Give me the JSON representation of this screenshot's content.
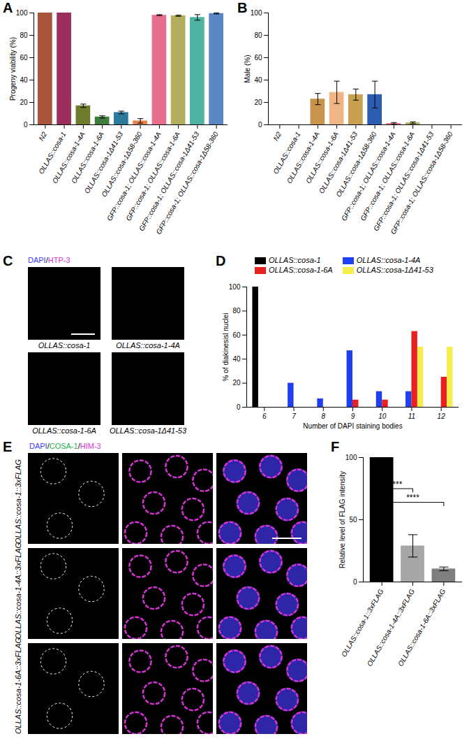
{
  "chart_data": [
    {
      "panel": "A",
      "type": "bar",
      "categories": [
        "N2",
        "OLLAS::cosa-1",
        "OLLAS::cosa-1-4A",
        "OLLAS::cosa-1-6A",
        "OLLAS::cosa-1Δ41-53",
        "OLLAS::cosa-1Δ58-360",
        "GFP::cosa-1; OLLAS::cosa-1-4A",
        "GFP::cosa-1; OLLAS::cosa-1-6A",
        "GFP::cosa-1; OLLAS::cosa-1Δ41-53",
        "GFP::cosa-1; OLLAS::cosa-1Δ58-360"
      ],
      "values": [
        100,
        100,
        17,
        7,
        11,
        3.5,
        98,
        97.5,
        96,
        99.5
      ],
      "errors": [
        0,
        0,
        1.5,
        1,
        1.2,
        2,
        0.5,
        0.5,
        2.5,
        0.5
      ],
      "colors": [
        "#a9533b",
        "#9a2f5c",
        "#6e7b28",
        "#3f7d3a",
        "#2b7a9e",
        "#e8834a",
        "#e66f8d",
        "#b3ad5e",
        "#4fb3a3",
        "#5a86c6"
      ],
      "ylabel": "Progeny viability (%)",
      "ylim": [
        0,
        100
      ],
      "yticks": [
        0,
        20,
        40,
        60,
        80,
        100
      ]
    },
    {
      "panel": "B",
      "type": "bar",
      "categories": [
        "N2",
        "OLLAS::cosa-1",
        "OLLAS::cosa-1-4A",
        "OLLAS::cosa-1-6A",
        "OLLAS::cosa-1Δ41-53",
        "OLLAS::cosa-1Δ58-360",
        "GFP::cosa-1; OLLAS::cosa-1-4A",
        "GFP::cosa-1; OLLAS::cosa-1-6A",
        "GFP::cosa-1; OLLAS::cosa-1Δ41-53",
        "GFP::cosa-1; OLLAS::cosa-1Δ58-360"
      ],
      "values": [
        0,
        0,
        23,
        29,
        27,
        27,
        1.2,
        1.8,
        0,
        0
      ],
      "errors": [
        0,
        0,
        5,
        10,
        5,
        12,
        0.8,
        0.8,
        0,
        0
      ],
      "colors": [
        "#a9533b",
        "#9a2f5c",
        "#c8934a",
        "#f0b585",
        "#c9a050",
        "#2a5db0",
        "#e66f8d",
        "#b3ad5e",
        "#4fb3a3",
        "#5a86c6"
      ],
      "ylabel": "Male (%)",
      "ylim": [
        0,
        100
      ],
      "yticks": [
        0,
        20,
        40,
        60,
        80,
        100
      ]
    },
    {
      "panel": "D",
      "type": "bar",
      "legend": "top",
      "categories": [
        6,
        7,
        8,
        9,
        10,
        11,
        12
      ],
      "series": [
        {
          "name": "OLLAS::cosa-1",
          "color": "#000000",
          "values": [
            100,
            0,
            0,
            0,
            0,
            0,
            0
          ]
        },
        {
          "name": "OLLAS::cosa-1-4A",
          "color": "#1f3ff0",
          "values": [
            0,
            20,
            7,
            47,
            13,
            13,
            0
          ]
        },
        {
          "name": "OLLAS::cosa-1-6A",
          "color": "#e82020",
          "values": [
            0,
            0,
            0,
            6,
            6,
            63,
            25
          ]
        },
        {
          "name": "OLLAS::cosa-1Δ41-53",
          "color": "#f3ee4e",
          "values": [
            0,
            0,
            0,
            0,
            0,
            50,
            50
          ]
        }
      ],
      "xlabel": "Number of DAPI staining bodies",
      "ylabel": "% of diakinesisl nuclei",
      "ylim": [
        0,
        100
      ],
      "yticks": [
        0,
        20,
        40,
        60,
        80,
        100
      ]
    },
    {
      "panel": "F",
      "type": "bar",
      "categories": [
        "OLLAS::cosa-1::3xFLAG",
        "OLLAS::cosa-1-4A::3xFLAG",
        "OLLAS::cosa-1-6A::3xFLAG"
      ],
      "values": [
        100,
        29,
        10.5
      ],
      "errors": [
        0,
        9,
        1.5
      ],
      "colors": [
        "#000000",
        "#a6a6a6",
        "#7f7f7f"
      ],
      "ylabel": "Relative level of FLAG intensity",
      "ylim": [
        0,
        100
      ],
      "yticks": [
        0,
        50,
        100
      ],
      "annotations": [
        {
          "from": 0,
          "to": 1,
          "y": 75,
          "text": "***"
        },
        {
          "from": 0,
          "to": 2,
          "y": 64,
          "text": "****"
        }
      ]
    }
  ],
  "images": [
    {
      "panel": "C",
      "stains": [
        {
          "text": "DAPI",
          "color": "#3b3bff"
        },
        {
          "text": "/",
          "color": "#000000"
        },
        {
          "text": "HTP-3",
          "color": "#d633d6"
        }
      ],
      "labels": [
        "OLLAS::cosa-1",
        "OLLAS::cosa-1-4A",
        "OLLAS::cosa-1-6A",
        "OLLAS::cosa-1Δ41-53"
      ]
    },
    {
      "panel": "E",
      "stains": [
        {
          "text": "DAPI",
          "color": "#3b3bff"
        },
        {
          "text": "/",
          "color": "#000000"
        },
        {
          "text": "COSA-1",
          "color": "#22b14c"
        },
        {
          "text": "/",
          "color": "#000000"
        },
        {
          "text": "HIM-3",
          "color": "#d633d6"
        }
      ],
      "rows": [
        "OLLAS::cosa-1::3xFLAG",
        "OLLAS::cosa-1-4A::3xFLAG",
        "OLLAS::cosa-1-6A::3xFLAG"
      ]
    }
  ]
}
